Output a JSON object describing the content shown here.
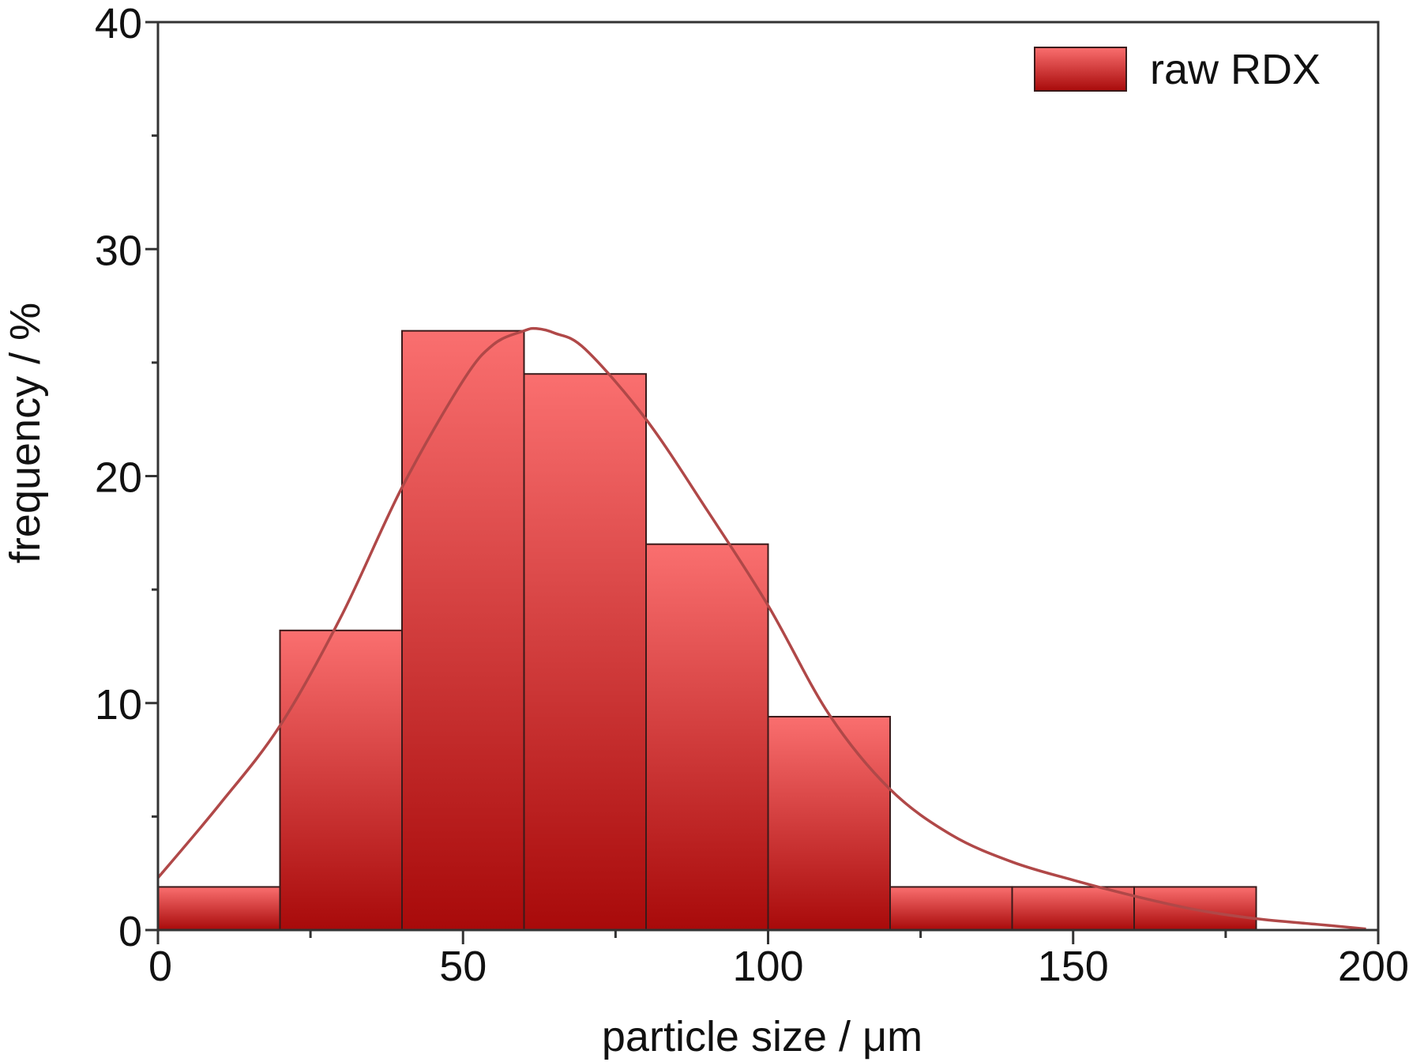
{
  "chart_data": {
    "type": "bar",
    "subtype": "histogram",
    "xlabel": "particle size / μm",
    "ylabel": "frequency / %",
    "xlim": [
      0,
      200
    ],
    "ylim": [
      0,
      40
    ],
    "xticks": [
      0,
      50,
      100,
      150,
      200
    ],
    "yticks": [
      0,
      10,
      20,
      30,
      40
    ],
    "x_minor_step": 25,
    "y_minor_step": 5,
    "grid": false,
    "legend_position": "top-right",
    "series": [
      {
        "name": "raw RDX",
        "color_top": "#fa6f6f",
        "color_bottom": "#a80a0a",
        "edge_color": "#3a1a1a",
        "bins": [
          {
            "start": 0,
            "end": 20,
            "value": 1.9
          },
          {
            "start": 20,
            "end": 40,
            "value": 13.2
          },
          {
            "start": 40,
            "end": 60,
            "value": 26.4
          },
          {
            "start": 60,
            "end": 80,
            "value": 24.5
          },
          {
            "start": 80,
            "end": 100,
            "value": 17.0
          },
          {
            "start": 100,
            "end": 120,
            "value": 9.4
          },
          {
            "start": 120,
            "end": 140,
            "value": 1.9
          },
          {
            "start": 140,
            "end": 160,
            "value": 1.9
          },
          {
            "start": 160,
            "end": 180,
            "value": 1.9
          }
        ]
      }
    ],
    "fit_curve": {
      "color": "#b04848",
      "points": [
        [
          0,
          2.3
        ],
        [
          10,
          5.5
        ],
        [
          20,
          9.0
        ],
        [
          30,
          13.8
        ],
        [
          40,
          19.5
        ],
        [
          50,
          24.2
        ],
        [
          55,
          25.8
        ],
        [
          60,
          26.4
        ],
        [
          62,
          26.5
        ],
        [
          65,
          26.3
        ],
        [
          70,
          25.6
        ],
        [
          80,
          22.5
        ],
        [
          90,
          18.5
        ],
        [
          100,
          14.3
        ],
        [
          110,
          9.5
        ],
        [
          120,
          6.2
        ],
        [
          130,
          4.2
        ],
        [
          140,
          3.0
        ],
        [
          150,
          2.2
        ],
        [
          160,
          1.5
        ],
        [
          170,
          0.9
        ],
        [
          180,
          0.5
        ],
        [
          190,
          0.25
        ],
        [
          198,
          0.05
        ]
      ]
    }
  }
}
